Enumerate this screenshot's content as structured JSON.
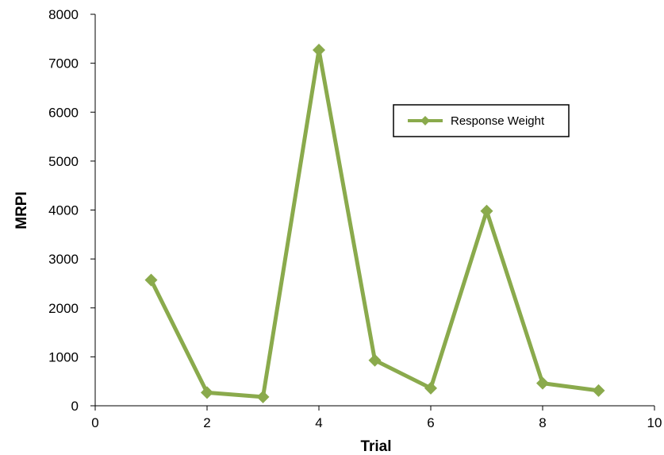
{
  "chart_data": {
    "type": "line",
    "xlabel": "Trial",
    "ylabel": "MRPI",
    "xlim": [
      0,
      10
    ],
    "ylim": [
      0,
      8000
    ],
    "x_ticks": [
      0,
      2,
      4,
      6,
      8,
      10
    ],
    "y_ticks": [
      0,
      1000,
      2000,
      3000,
      4000,
      5000,
      6000,
      7000,
      8000
    ],
    "grid": false,
    "legend_position": "top-right",
    "series": [
      {
        "name": "Response Weight",
        "color": "#8aaa4c",
        "marker": "diamond",
        "x": [
          1,
          2,
          3,
          4,
          5,
          6,
          7,
          8,
          9
        ],
        "y": [
          2570,
          270,
          180,
          7270,
          930,
          360,
          3980,
          460,
          310
        ]
      }
    ]
  }
}
